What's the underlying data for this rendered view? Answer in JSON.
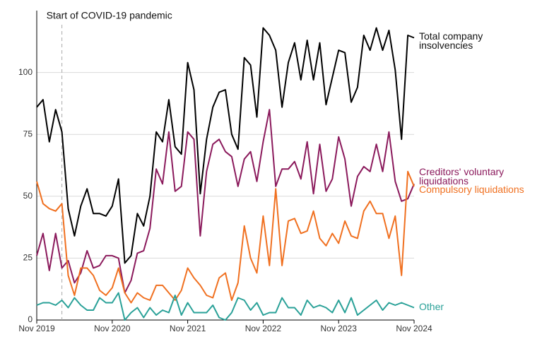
{
  "chart_data": {
    "type": "line",
    "categories": [
      "Nov 2019",
      null,
      null,
      null,
      null,
      null,
      null,
      null,
      null,
      null,
      null,
      null,
      "Nov 2020",
      null,
      null,
      null,
      null,
      null,
      null,
      null,
      null,
      null,
      null,
      null,
      "Nov 2021",
      null,
      null,
      null,
      null,
      null,
      null,
      null,
      null,
      null,
      null,
      null,
      "Nov 2022",
      null,
      null,
      null,
      null,
      null,
      null,
      null,
      null,
      null,
      null,
      null,
      "Nov 2023",
      null,
      null,
      null,
      null,
      null,
      null,
      null,
      null,
      null,
      null,
      null,
      "Nov 2024"
    ],
    "series": [
      {
        "name": "Total company insolvencies",
        "color": "#000000",
        "values": [
          86,
          89,
          72,
          85,
          76,
          45,
          34,
          46,
          53,
          43,
          43,
          42,
          46,
          57,
          23,
          26,
          43,
          38,
          50,
          76,
          72,
          89,
          70,
          67,
          104,
          93,
          51,
          73,
          86,
          92,
          93,
          75,
          69,
          106,
          103,
          82,
          118,
          115,
          109,
          86,
          104,
          112,
          97,
          113,
          97,
          112,
          87,
          98,
          109,
          108,
          88,
          94,
          115,
          109,
          118,
          109,
          117,
          101,
          73,
          115,
          114
        ]
      },
      {
        "name": "Creditors' voluntary liquidations",
        "color": "#8b1a5c",
        "values": [
          26,
          35,
          20,
          35,
          21,
          24,
          15,
          19,
          28,
          21,
          22,
          26,
          26,
          25,
          11,
          16,
          27,
          28,
          37,
          61,
          55,
          76,
          52,
          54,
          76,
          73,
          34,
          60,
          71,
          73,
          68,
          66,
          54,
          65,
          68,
          56,
          72,
          85,
          54,
          61,
          61,
          64,
          57,
          72,
          51,
          71,
          52,
          57,
          74,
          65,
          46,
          58,
          62,
          60,
          71,
          60,
          76,
          56,
          48,
          49,
          55
        ]
      },
      {
        "name": "Compulsory liquidations",
        "color": "#f07020",
        "values": [
          56,
          47,
          45,
          44,
          47,
          18,
          10,
          21,
          21,
          18,
          12,
          10,
          13,
          21,
          11,
          7,
          11,
          9,
          8,
          14,
          14,
          11,
          8,
          12,
          21,
          17,
          14,
          10,
          9,
          17,
          19,
          8,
          15,
          38,
          25,
          19,
          42,
          22,
          53,
          22,
          40,
          41,
          35,
          36,
          44,
          33,
          30,
          35,
          31,
          40,
          34,
          33,
          44,
          48,
          43,
          43,
          33,
          42,
          18,
          60,
          54
        ]
      },
      {
        "name": "Other",
        "color": "#2aa198",
        "values": [
          6,
          7,
          7,
          6,
          8,
          5,
          9,
          6,
          4,
          4,
          9,
          7,
          7,
          11,
          0,
          3,
          5,
          1,
          5,
          2,
          4,
          3,
          10,
          2,
          7,
          3,
          3,
          3,
          6,
          1,
          0,
          3,
          9,
          8,
          4,
          7,
          2,
          3,
          3,
          9,
          5,
          5,
          2,
          8,
          5,
          6,
          5,
          3,
          8,
          3,
          9,
          2,
          4,
          6,
          8,
          4,
          7,
          6,
          7,
          6,
          5
        ]
      }
    ],
    "ylim": [
      0,
      125
    ],
    "yticks": [
      0,
      25,
      50,
      75,
      100
    ],
    "grid": true,
    "annotation": {
      "text": "Start of COVID-19 pandemic",
      "at_index": 4
    }
  }
}
